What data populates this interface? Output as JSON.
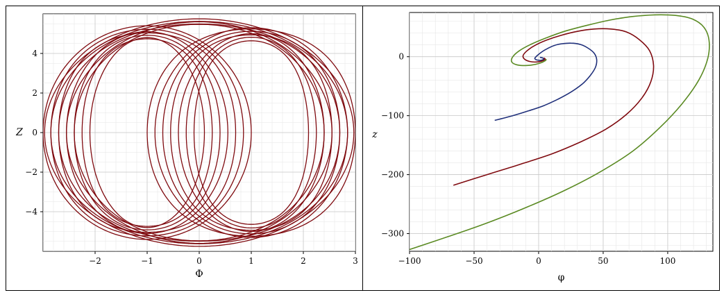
{
  "chart_data": [
    {
      "type": "line",
      "xlabel": "Φ",
      "ylabel": "Z",
      "xlim": [
        -3,
        3
      ],
      "ylim": [
        -6,
        6
      ],
      "xticks": [
        -2,
        -1,
        0,
        1,
        2,
        3
      ],
      "yticks": [
        -4,
        -2,
        0,
        2,
        4
      ],
      "grid": true,
      "series": [
        {
          "color": "#7f0a0f",
          "description": "Dense family of nested closed orbits symmetric about Φ=0, spanning Φ from -3 to 3 and Z from -5.8 to 5.8, all intersecting near (0, ±5)",
          "loops": [
            {
              "cx": 0.0,
              "rx": 2.97,
              "ry": 5.75
            },
            {
              "cx": 0.0,
              "rx": 2.85,
              "ry": 5.7
            },
            {
              "cx": 0.0,
              "rx": 2.7,
              "ry": 5.65
            },
            {
              "cx": 0.0,
              "rx": 2.55,
              "ry": 5.6
            },
            {
              "cx": 0.0,
              "rx": 2.4,
              "ry": 5.55
            },
            {
              "cx": 1.0,
              "rx": 2.0,
              "ry": 5.4
            },
            {
              "cx": 1.0,
              "rx": 1.85,
              "ry": 5.3
            },
            {
              "cx": 1.0,
              "rx": 1.7,
              "ry": 5.2
            },
            {
              "cx": 1.0,
              "rx": 1.55,
              "ry": 5.1
            },
            {
              "cx": 1.0,
              "rx": 1.4,
              "ry": 5.0
            },
            {
              "cx": 1.0,
              "rx": 1.25,
              "ry": 4.9
            },
            {
              "cx": 1.0,
              "rx": 1.1,
              "ry": 4.8
            },
            {
              "cx": -1.0,
              "rx": 2.0,
              "ry": 5.4
            },
            {
              "cx": -1.0,
              "rx": 1.85,
              "ry": 5.3
            },
            {
              "cx": -1.0,
              "rx": 1.7,
              "ry": 5.2
            },
            {
              "cx": -1.0,
              "rx": 1.55,
              "ry": 5.1
            },
            {
              "cx": -1.0,
              "rx": 1.4,
              "ry": 5.0
            },
            {
              "cx": -1.0,
              "rx": 1.25,
              "ry": 4.9
            },
            {
              "cx": -1.0,
              "rx": 1.1,
              "ry": 4.8
            }
          ]
        }
      ]
    },
    {
      "type": "line",
      "xlabel": "φ",
      "ylabel": "z",
      "xlim": [
        -100,
        135
      ],
      "ylim": [
        -330,
        75
      ],
      "xticks": [
        -100,
        -50,
        0,
        50,
        100
      ],
      "yticks": [
        -300,
        -200,
        -100,
        0
      ],
      "grid": true,
      "series": [
        {
          "color": "#1f2f7a",
          "x": [
            -34,
            -20,
            -8,
            4,
            15,
            25,
            34,
            40,
            44,
            45,
            43,
            38,
            32,
            25,
            18,
            12,
            7,
            3,
            0,
            -2,
            -3,
            -2,
            0,
            2,
            4,
            3,
            1
          ],
          "y": [
            -108,
            -100,
            -92,
            -83,
            -72,
            -60,
            -46,
            -32,
            -18,
            -5,
            6,
            15,
            21,
            23,
            22,
            19,
            14,
            9,
            4,
            0,
            -3,
            -5,
            -6,
            -6,
            -4,
            -2,
            -1
          ]
        },
        {
          "color": "#7f0a0f",
          "x": [
            -66,
            -40,
            -15,
            10,
            32,
            52,
            68,
            80,
            87,
            89,
            86,
            78,
            68,
            56,
            43,
            30,
            17,
            6,
            -3,
            -9,
            -12,
            -11,
            -7,
            -2,
            3,
            5,
            4
          ],
          "y": [
            -218,
            -200,
            -183,
            -165,
            -145,
            -123,
            -98,
            -70,
            -42,
            -15,
            10,
            29,
            42,
            47,
            47,
            43,
            36,
            28,
            19,
            10,
            2,
            -4,
            -8,
            -9,
            -7,
            -4,
            -2
          ]
        },
        {
          "color": "#5a8a22",
          "x": [
            -100,
            -70,
            -40,
            -10,
            20,
            48,
            73,
            94,
            111,
            124,
            131,
            132,
            128,
            119,
            106,
            90,
            72,
            55,
            37,
            20,
            6,
            -6,
            -15,
            -20,
            -21,
            -18,
            -12,
            -5,
            1,
            5,
            6
          ],
          "y": [
            -327,
            -305,
            -282,
            -256,
            -227,
            -195,
            -160,
            -120,
            -80,
            -40,
            -3,
            28,
            50,
            64,
            70,
            71,
            68,
            62,
            53,
            43,
            32,
            21,
            10,
            0,
            -8,
            -13,
            -15,
            -14,
            -11,
            -7,
            -4
          ]
        }
      ]
    }
  ]
}
